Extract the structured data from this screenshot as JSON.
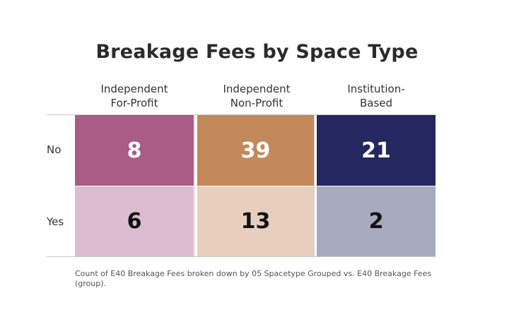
{
  "chart_data": {
    "type": "table",
    "title": "Breakage Fees by Space Type",
    "columns": [
      "Independent\nFor-Profit",
      "Independent\nNon-Profit",
      "Institution-\nBased"
    ],
    "rows": [
      "No",
      "Yes"
    ],
    "values": [
      [
        8,
        39,
        21
      ],
      [
        6,
        13,
        2
      ]
    ],
    "caption": "Count of E40 Breakage Fees broken down by 05 Spacetype Grouped vs. E40 Breakage Fees (group).",
    "colors": {
      "No": [
        "#a85c86",
        "#c4895a",
        "#242760"
      ],
      "Yes": [
        "#dcbcd0",
        "#e8cfbd",
        "#a7a9be"
      ]
    },
    "text_colors": {
      "No": "#ffffff",
      "Yes": "#111111"
    }
  }
}
